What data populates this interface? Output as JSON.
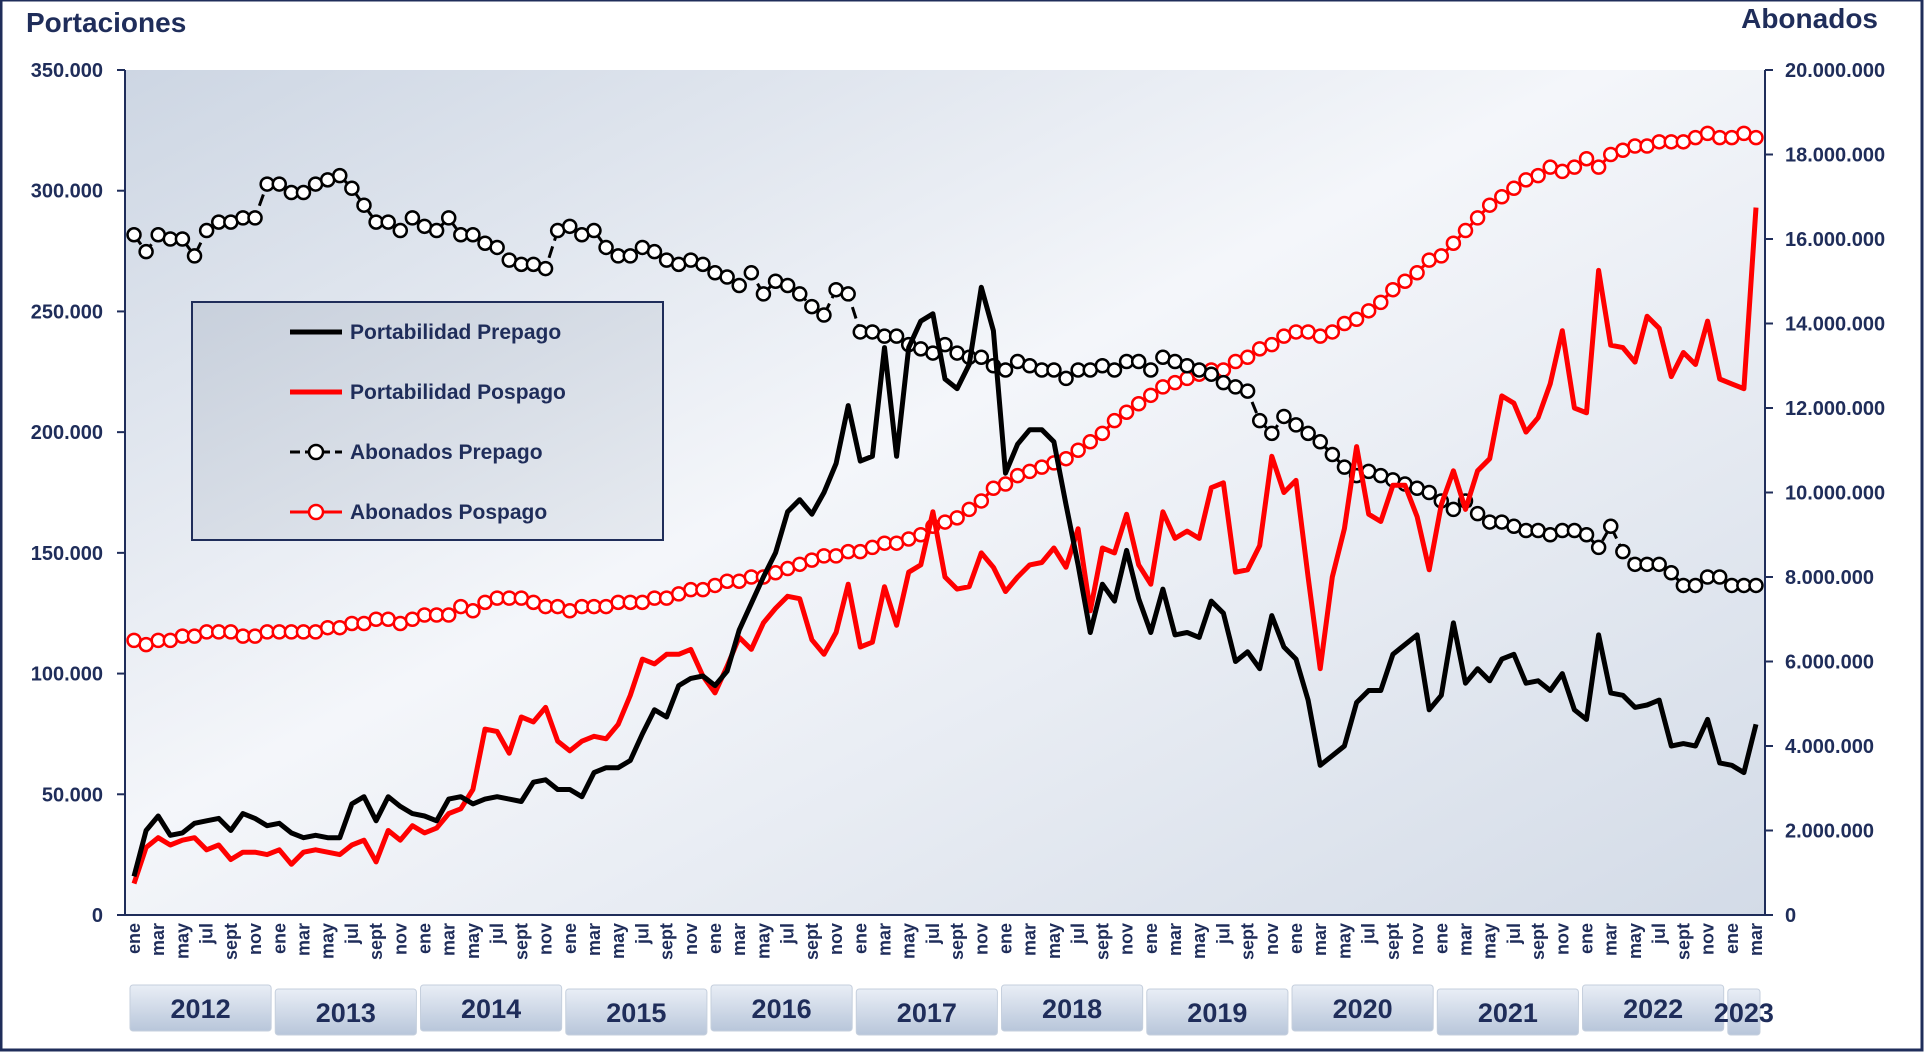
{
  "chart_data": {
    "type": "line",
    "title_left": "Portaciones",
    "title_right": "Abonados",
    "categories": [
      "ene",
      null,
      "mar",
      null,
      "may",
      null,
      "jul",
      null,
      "sept",
      null,
      "nov",
      null,
      "ene",
      null,
      "mar",
      null,
      "may",
      null,
      "jul",
      null,
      "sept",
      null,
      "nov",
      null,
      "ene",
      null,
      "mar",
      null,
      "may",
      null,
      "jul",
      null,
      "sept",
      null,
      "nov",
      null,
      "ene",
      null,
      "mar",
      null,
      "may",
      null,
      "jul",
      null,
      "sept",
      null,
      "nov",
      null,
      "ene",
      null,
      "mar",
      null,
      "may",
      null,
      "jul",
      null,
      "sept",
      null,
      "nov",
      null,
      "ene",
      null,
      "mar",
      null,
      "may",
      null,
      "jul",
      null,
      "sept",
      null,
      "nov",
      null,
      "ene",
      null,
      "mar",
      null,
      "may",
      null,
      "jul",
      null,
      "sept",
      null,
      "nov",
      null,
      "ene",
      null,
      "mar",
      null,
      "may",
      null,
      "jul",
      null,
      "sept",
      null,
      "nov",
      null,
      "ene",
      null,
      "mar",
      null,
      "may",
      null,
      "jul",
      null,
      "sept",
      null,
      "nov",
      null,
      "ene",
      null,
      "mar",
      null,
      "may",
      null,
      "jul",
      null,
      "sept",
      null,
      "nov",
      null,
      "ene",
      null,
      "mar",
      null,
      "may",
      null,
      "jul",
      null,
      "sept",
      null,
      "nov",
      null,
      "ene",
      null,
      "mar"
    ],
    "year_groups": [
      "2012",
      "2013",
      "2014",
      "2015",
      "2016",
      "2017",
      "2018",
      "2019",
      "2020",
      "2021",
      "2022",
      "2023"
    ],
    "ylim": [
      0,
      350000
    ],
    "yticks": [
      0,
      {
        "value": 50000,
        "label": "50.000"
      },
      {
        "value": 100000,
        "label": "100.000"
      },
      {
        "value": 150000,
        "label": "150.000"
      },
      {
        "value": 200000,
        "label": "200.000"
      },
      {
        "value": 250000,
        "label": "250.000"
      },
      {
        "value": 300000,
        "label": "300.000"
      },
      {
        "value": 350000,
        "label": "350.000"
      }
    ],
    "y2lim": [
      0,
      20000000
    ],
    "y2ticks": [
      0,
      {
        "value": 2000000,
        "label": "2.000.000"
      },
      {
        "value": 4000000,
        "label": "4.000.000"
      },
      {
        "value": 6000000,
        "label": "6.000.000"
      },
      {
        "value": 8000000,
        "label": "8.000.000"
      },
      {
        "value": 10000000,
        "label": "10.000.000"
      },
      {
        "value": 12000000,
        "label": "12.000.000"
      },
      {
        "value": 14000000,
        "label": "14.000.000"
      },
      {
        "value": 16000000,
        "label": "16.000.000"
      },
      {
        "value": 18000000,
        "label": "18.000.000"
      },
      {
        "value": 20000000,
        "label": "20.000.000"
      }
    ],
    "series": [
      {
        "name": "Portabilidad Prepago",
        "color": "#000000",
        "line_style": "solid",
        "marker": "none",
        "values": [
          16000,
          35000,
          41000,
          33000,
          34000,
          38000,
          39000,
          40000,
          35000,
          42000,
          40000,
          37000,
          38000,
          34000,
          32000,
          33000,
          32000,
          32000,
          46000,
          49000,
          39000,
          49000,
          45000,
          42000,
          41000,
          39000,
          48000,
          49000,
          46000,
          48000,
          49000,
          48000,
          47000,
          55000,
          56000,
          52000,
          52000,
          49000,
          59000,
          61000,
          61000,
          64000,
          75000,
          85000,
          82000,
          95000,
          98000,
          99000,
          95000,
          101000,
          118000,
          129000,
          140000,
          150000,
          167000,
          172000,
          166000,
          175000,
          187000,
          211000,
          188000,
          190000,
          235000,
          190000,
          235000,
          246000,
          249000,
          222000,
          218000,
          228000,
          260000,
          242000,
          183000,
          195000,
          201000,
          201000,
          196000,
          170000,
          145000,
          117000,
          137000,
          130000,
          151000,
          131000,
          117000,
          135000,
          116000,
          117000,
          115000,
          130000,
          125000,
          105000,
          109000,
          102000,
          124000,
          111000,
          106000,
          89000,
          62000,
          66000,
          70000,
          88000,
          93000,
          93000,
          108000,
          112000,
          116000,
          85000,
          91000,
          121000,
          96000,
          102000,
          97000,
          106000,
          108000,
          96000,
          97000,
          93000,
          100000,
          85000,
          81000,
          116000,
          92000,
          91000,
          86000,
          87000,
          89000,
          70000,
          71000,
          70000,
          81000,
          63000,
          62000,
          59000,
          79000
        ]
      },
      {
        "name": "Portabilidad Pospago",
        "color": "#ff0000",
        "line_style": "solid",
        "marker": "none",
        "values": [
          13000,
          28000,
          32000,
          29000,
          31000,
          32000,
          27000,
          29000,
          23000,
          26000,
          26000,
          25000,
          27000,
          21000,
          26000,
          27000,
          26000,
          25000,
          29000,
          31000,
          22000,
          35000,
          31000,
          37000,
          34000,
          36000,
          42000,
          44000,
          52000,
          77000,
          76000,
          67000,
          82000,
          80000,
          86000,
          72000,
          68000,
          72000,
          74000,
          73000,
          79000,
          91000,
          106000,
          104000,
          108000,
          108000,
          110000,
          99000,
          92000,
          103000,
          115000,
          110000,
          121000,
          127000,
          132000,
          131000,
          114000,
          108000,
          117000,
          137000,
          111000,
          113000,
          136000,
          120000,
          142000,
          145000,
          167000,
          140000,
          135000,
          136000,
          150000,
          144000,
          134000,
          140000,
          145000,
          146000,
          152000,
          144000,
          160000,
          126000,
          152000,
          150000,
          166000,
          145000,
          137000,
          167000,
          156000,
          159000,
          156000,
          177000,
          179000,
          142000,
          143000,
          153000,
          190000,
          175000,
          180000,
          140000,
          102000,
          140000,
          160000,
          194000,
          166000,
          163000,
          178000,
          178000,
          165000,
          143000,
          170000,
          184000,
          168000,
          184000,
          189000,
          215000,
          212000,
          200000,
          206000,
          220000,
          242000,
          210000,
          208000,
          267000,
          236000,
          235000,
          229000,
          248000,
          243000,
          223000,
          233000,
          228000,
          246000,
          222000,
          220000,
          218000,
          293000
        ]
      },
      {
        "name": "Abonados Prepago",
        "color": "#000000",
        "line_style": "dashed",
        "marker": "circle",
        "marker_fill": "#ffffff",
        "axis": "y2",
        "values": [
          16100000,
          15700000,
          16100000,
          16000000,
          16000000,
          15600000,
          16200000,
          16400000,
          16400000,
          16500000,
          16500000,
          17300000,
          17300000,
          17100000,
          17100000,
          17300000,
          17400000,
          17500000,
          17200000,
          16800000,
          16400000,
          16400000,
          16200000,
          16500000,
          16300000,
          16200000,
          16500000,
          16100000,
          16100000,
          15900000,
          15800000,
          15500000,
          15400000,
          15400000,
          15300000,
          16200000,
          16300000,
          16100000,
          16200000,
          15800000,
          15600000,
          15600000,
          15800000,
          15700000,
          15500000,
          15400000,
          15500000,
          15400000,
          15200000,
          15100000,
          14900000,
          15200000,
          14700000,
          15000000,
          14900000,
          14700000,
          14400000,
          14200000,
          14800000,
          14700000,
          13800000,
          13800000,
          13700000,
          13700000,
          13500000,
          13400000,
          13300000,
          13500000,
          13300000,
          13200000,
          13200000,
          13000000,
          12900000,
          13100000,
          13000000,
          12900000,
          12900000,
          12700000,
          12900000,
          12900000,
          13000000,
          12900000,
          13100000,
          13100000,
          12900000,
          13200000,
          13100000,
          13000000,
          12900000,
          12800000,
          12600000,
          12500000,
          12400000,
          11700000,
          11400000,
          11800000,
          11600000,
          11400000,
          11200000,
          10900000,
          10600000,
          10400000,
          10500000,
          10400000,
          10300000,
          10200000,
          10100000,
          10000000,
          9800000,
          9600000,
          9800000,
          9500000,
          9300000,
          9300000,
          9200000,
          9100000,
          9100000,
          9000000,
          9100000,
          9100000,
          9000000,
          8700000,
          9200000,
          8600000,
          8300000,
          8300000,
          8300000,
          8100000,
          7800000,
          7800000,
          8000000,
          8000000,
          7800000,
          7800000,
          7800000
        ]
      },
      {
        "name": "Abonados Pospago",
        "color": "#ff0000",
        "line_style": "solid",
        "marker": "circle",
        "marker_fill": "#ffffff",
        "axis": "y2",
        "values": [
          6500000,
          6400000,
          6500000,
          6500000,
          6600000,
          6600000,
          6700000,
          6700000,
          6700000,
          6600000,
          6600000,
          6700000,
          6700000,
          6700000,
          6700000,
          6700000,
          6800000,
          6800000,
          6900000,
          6900000,
          7000000,
          7000000,
          6900000,
          7000000,
          7100000,
          7100000,
          7100000,
          7300000,
          7200000,
          7400000,
          7500000,
          7500000,
          7500000,
          7400000,
          7300000,
          7300000,
          7200000,
          7300000,
          7300000,
          7300000,
          7400000,
          7400000,
          7400000,
          7500000,
          7500000,
          7600000,
          7700000,
          7700000,
          7800000,
          7900000,
          7900000,
          8000000,
          8000000,
          8100000,
          8200000,
          8300000,
          8400000,
          8500000,
          8500000,
          8600000,
          8600000,
          8700000,
          8800000,
          8800000,
          8900000,
          9000000,
          9200000,
          9300000,
          9400000,
          9600000,
          9800000,
          10100000,
          10200000,
          10400000,
          10500000,
          10600000,
          10700000,
          10800000,
          11000000,
          11200000,
          11400000,
          11700000,
          11900000,
          12100000,
          12300000,
          12500000,
          12600000,
          12700000,
          12800000,
          12900000,
          12900000,
          13100000,
          13200000,
          13400000,
          13500000,
          13700000,
          13800000,
          13800000,
          13700000,
          13800000,
          14000000,
          14100000,
          14300000,
          14500000,
          14800000,
          15000000,
          15200000,
          15500000,
          15600000,
          15900000,
          16200000,
          16500000,
          16800000,
          17000000,
          17200000,
          17400000,
          17500000,
          17700000,
          17600000,
          17700000,
          17900000,
          17700000,
          18000000,
          18100000,
          18200000,
          18200000,
          18300000,
          18300000,
          18300000,
          18400000,
          18500000,
          18400000,
          18400000,
          18500000,
          18400000
        ]
      }
    ],
    "legend": "upper left"
  }
}
